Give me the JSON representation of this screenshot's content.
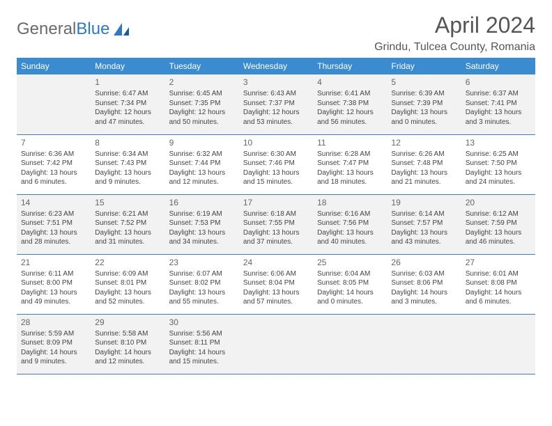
{
  "brand": {
    "part1": "General",
    "part2": "Blue"
  },
  "title": "April 2024",
  "location": "Grindu, Tulcea County, Romania",
  "colors": {
    "header_bg": "#3b8bd0",
    "header_fg": "#ffffff",
    "cell_border": "#4a7aa8",
    "shade_bg": "#f2f2f2",
    "text": "#444444",
    "brand_gray": "#6a6a6a",
    "brand_blue": "#2f78c2"
  },
  "day_headers": [
    "Sunday",
    "Monday",
    "Tuesday",
    "Wednesday",
    "Thursday",
    "Friday",
    "Saturday"
  ],
  "weeks": [
    [
      null,
      {
        "n": "1",
        "sr": "6:47 AM",
        "ss": "7:34 PM",
        "dl": "12 hours and 47 minutes."
      },
      {
        "n": "2",
        "sr": "6:45 AM",
        "ss": "7:35 PM",
        "dl": "12 hours and 50 minutes."
      },
      {
        "n": "3",
        "sr": "6:43 AM",
        "ss": "7:37 PM",
        "dl": "12 hours and 53 minutes."
      },
      {
        "n": "4",
        "sr": "6:41 AM",
        "ss": "7:38 PM",
        "dl": "12 hours and 56 minutes."
      },
      {
        "n": "5",
        "sr": "6:39 AM",
        "ss": "7:39 PM",
        "dl": "13 hours and 0 minutes."
      },
      {
        "n": "6",
        "sr": "6:37 AM",
        "ss": "7:41 PM",
        "dl": "13 hours and 3 minutes."
      }
    ],
    [
      {
        "n": "7",
        "sr": "6:36 AM",
        "ss": "7:42 PM",
        "dl": "13 hours and 6 minutes."
      },
      {
        "n": "8",
        "sr": "6:34 AM",
        "ss": "7:43 PM",
        "dl": "13 hours and 9 minutes."
      },
      {
        "n": "9",
        "sr": "6:32 AM",
        "ss": "7:44 PM",
        "dl": "13 hours and 12 minutes."
      },
      {
        "n": "10",
        "sr": "6:30 AM",
        "ss": "7:46 PM",
        "dl": "13 hours and 15 minutes."
      },
      {
        "n": "11",
        "sr": "6:28 AM",
        "ss": "7:47 PM",
        "dl": "13 hours and 18 minutes."
      },
      {
        "n": "12",
        "sr": "6:26 AM",
        "ss": "7:48 PM",
        "dl": "13 hours and 21 minutes."
      },
      {
        "n": "13",
        "sr": "6:25 AM",
        "ss": "7:50 PM",
        "dl": "13 hours and 24 minutes."
      }
    ],
    [
      {
        "n": "14",
        "sr": "6:23 AM",
        "ss": "7:51 PM",
        "dl": "13 hours and 28 minutes."
      },
      {
        "n": "15",
        "sr": "6:21 AM",
        "ss": "7:52 PM",
        "dl": "13 hours and 31 minutes."
      },
      {
        "n": "16",
        "sr": "6:19 AM",
        "ss": "7:53 PM",
        "dl": "13 hours and 34 minutes."
      },
      {
        "n": "17",
        "sr": "6:18 AM",
        "ss": "7:55 PM",
        "dl": "13 hours and 37 minutes."
      },
      {
        "n": "18",
        "sr": "6:16 AM",
        "ss": "7:56 PM",
        "dl": "13 hours and 40 minutes."
      },
      {
        "n": "19",
        "sr": "6:14 AM",
        "ss": "7:57 PM",
        "dl": "13 hours and 43 minutes."
      },
      {
        "n": "20",
        "sr": "6:12 AM",
        "ss": "7:59 PM",
        "dl": "13 hours and 46 minutes."
      }
    ],
    [
      {
        "n": "21",
        "sr": "6:11 AM",
        "ss": "8:00 PM",
        "dl": "13 hours and 49 minutes."
      },
      {
        "n": "22",
        "sr": "6:09 AM",
        "ss": "8:01 PM",
        "dl": "13 hours and 52 minutes."
      },
      {
        "n": "23",
        "sr": "6:07 AM",
        "ss": "8:02 PM",
        "dl": "13 hours and 55 minutes."
      },
      {
        "n": "24",
        "sr": "6:06 AM",
        "ss": "8:04 PM",
        "dl": "13 hours and 57 minutes."
      },
      {
        "n": "25",
        "sr": "6:04 AM",
        "ss": "8:05 PM",
        "dl": "14 hours and 0 minutes."
      },
      {
        "n": "26",
        "sr": "6:03 AM",
        "ss": "8:06 PM",
        "dl": "14 hours and 3 minutes."
      },
      {
        "n": "27",
        "sr": "6:01 AM",
        "ss": "8:08 PM",
        "dl": "14 hours and 6 minutes."
      }
    ],
    [
      {
        "n": "28",
        "sr": "5:59 AM",
        "ss": "8:09 PM",
        "dl": "14 hours and 9 minutes."
      },
      {
        "n": "29",
        "sr": "5:58 AM",
        "ss": "8:10 PM",
        "dl": "14 hours and 12 minutes."
      },
      {
        "n": "30",
        "sr": "5:56 AM",
        "ss": "8:11 PM",
        "dl": "14 hours and 15 minutes."
      },
      null,
      null,
      null,
      null
    ]
  ],
  "labels": {
    "sunrise": "Sunrise:",
    "sunset": "Sunset:",
    "daylight": "Daylight:"
  }
}
